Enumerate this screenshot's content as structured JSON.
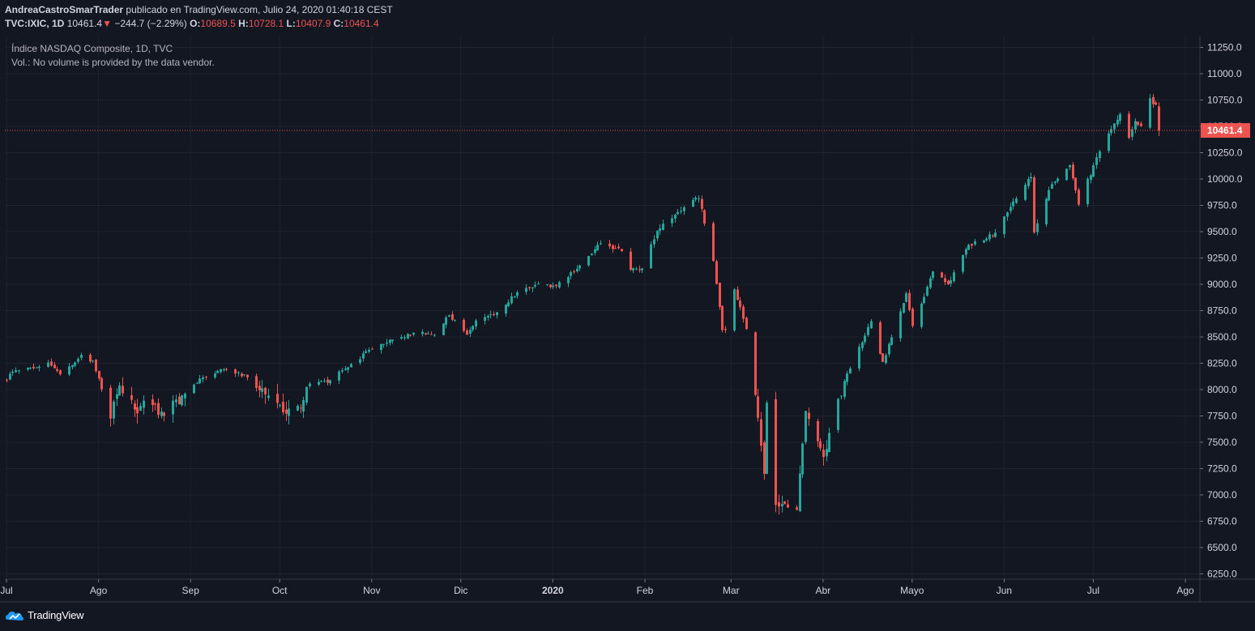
{
  "header": {
    "author": "AndreaCastroSmarTrader",
    "published": "publicado en TradingView.com, Julio 24, 2020 01:40:18 CEST",
    "symbol": "TVC:IXIC, 1D",
    "last": "10461.4",
    "change_arrow": "▼",
    "change": "−244.7 (−2.29%)",
    "o_label": "O:",
    "o_value": "10689.5",
    "h_label": "H:",
    "h_value": "10728.1",
    "l_label": "L:",
    "l_value": "10407.9",
    "c_label": "C:",
    "c_value": "10461.4"
  },
  "legend": {
    "title": "Índice NASDAQ Composite, 1D, TVC",
    "volume_note": "Vol.: No volume is provided by the data vendor."
  },
  "footer": {
    "brand": "TradingView"
  },
  "colors": {
    "up": "#26a69a",
    "down": "#ef5350",
    "background": "#131722",
    "grid": "#1e2230",
    "text": "#d1d4dc",
    "price_line": "#ef5350"
  },
  "chart_data": {
    "type": "candlestick",
    "ylim": [
      6250,
      11250
    ],
    "y_ticks": [
      "11250.0",
      "11000.0",
      "10750.0",
      "10500.0",
      "10250.0",
      "10000.0",
      "9750.0",
      "9500.0",
      "9250.0",
      "9000.0",
      "8750.0",
      "8500.0",
      "8250.0",
      "8000.0",
      "7750.0",
      "7500.0",
      "7250.0",
      "7000.0",
      "6750.0",
      "6500.0",
      "6250.0"
    ],
    "x_ticks": [
      "Jul",
      "Ago",
      "Sep",
      "Oct",
      "Nov",
      "Dic",
      "2020",
      "Feb",
      "Mar",
      "Abr",
      "Mayo",
      "Jun",
      "Jul",
      "Ago"
    ],
    "x_tick_dates": [
      "2019-07-01",
      "2019-08-01",
      "2019-09-01",
      "2019-10-01",
      "2019-11-01",
      "2019-12-01",
      "2020-01-01",
      "2020-02-01",
      "2020-03-01",
      "2020-04-01",
      "2020-05-01",
      "2020-06-01",
      "2020-07-01",
      "2020-08-01"
    ],
    "last_price_label": "10461.4",
    "last_price": 10461.4,
    "date_range": [
      "2019-07-01",
      "2020-07-23"
    ],
    "keypoints": [
      {
        "date": "2019-07-01",
        "close": 8091
      },
      {
        "date": "2019-07-03",
        "close": 8170
      },
      {
        "date": "2019-07-10",
        "close": 8202
      },
      {
        "date": "2019-07-15",
        "close": 8258
      },
      {
        "date": "2019-07-19",
        "close": 8146
      },
      {
        "date": "2019-07-26",
        "close": 8330
      },
      {
        "date": "2019-07-30",
        "close": 8273
      },
      {
        "date": "2019-07-31",
        "close": 8175
      },
      {
        "date": "2019-08-02",
        "close": 8004
      },
      {
        "date": "2019-08-05",
        "close": 7726
      },
      {
        "date": "2019-08-08",
        "close": 8039
      },
      {
        "date": "2019-08-14",
        "close": 7774
      },
      {
        "date": "2019-08-16",
        "close": 7895
      },
      {
        "date": "2019-08-23",
        "close": 7751
      },
      {
        "date": "2019-08-30",
        "close": 7962
      },
      {
        "date": "2019-09-05",
        "close": 8116
      },
      {
        "date": "2019-09-12",
        "close": 8194
      },
      {
        "date": "2019-09-20",
        "close": 8117
      },
      {
        "date": "2019-09-24",
        "close": 7993
      },
      {
        "date": "2019-10-02",
        "close": 7785
      },
      {
        "date": "2019-10-08",
        "close": 7823
      },
      {
        "date": "2019-10-11",
        "close": 8057
      },
      {
        "date": "2019-10-18",
        "close": 8089
      },
      {
        "date": "2019-10-25",
        "close": 8243
      },
      {
        "date": "2019-11-01",
        "close": 8386
      },
      {
        "date": "2019-11-08",
        "close": 8475
      },
      {
        "date": "2019-11-15",
        "close": 8540
      },
      {
        "date": "2019-11-22",
        "close": 8519
      },
      {
        "date": "2019-11-27",
        "close": 8705
      },
      {
        "date": "2019-12-03",
        "close": 8521
      },
      {
        "date": "2019-12-06",
        "close": 8656
      },
      {
        "date": "2019-12-13",
        "close": 8734
      },
      {
        "date": "2019-12-20",
        "close": 8924
      },
      {
        "date": "2019-12-27",
        "close": 9006
      },
      {
        "date": "2019-12-31",
        "close": 8973
      },
      {
        "date": "2020-01-03",
        "close": 9020
      },
      {
        "date": "2020-01-10",
        "close": 9179
      },
      {
        "date": "2020-01-17",
        "close": 9389
      },
      {
        "date": "2020-01-24",
        "close": 9315
      },
      {
        "date": "2020-01-27",
        "close": 9139
      },
      {
        "date": "2020-01-31",
        "close": 9151
      },
      {
        "date": "2020-02-05",
        "close": 9508
      },
      {
        "date": "2020-02-10",
        "close": 9628
      },
      {
        "date": "2020-02-14",
        "close": 9731
      },
      {
        "date": "2020-02-19",
        "close": 9817
      },
      {
        "date": "2020-02-21",
        "close": 9577
      },
      {
        "date": "2020-02-24",
        "close": 9221
      },
      {
        "date": "2020-02-27",
        "close": 8566
      },
      {
        "date": "2020-02-28",
        "close": 8567
      },
      {
        "date": "2020-03-02",
        "close": 8952
      },
      {
        "date": "2020-03-06",
        "close": 8576
      },
      {
        "date": "2020-03-09",
        "close": 7950
      },
      {
        "date": "2020-03-12",
        "close": 7201
      },
      {
        "date": "2020-03-13",
        "close": 7875
      },
      {
        "date": "2020-03-16",
        "close": 6905
      },
      {
        "date": "2020-03-20",
        "close": 6880
      },
      {
        "date": "2020-03-23",
        "close": 6860
      },
      {
        "date": "2020-03-26",
        "close": 7797
      },
      {
        "date": "2020-04-01",
        "close": 7360
      },
      {
        "date": "2020-04-06",
        "close": 7913
      },
      {
        "date": "2020-04-09",
        "close": 8154
      },
      {
        "date": "2020-04-17",
        "close": 8650
      },
      {
        "date": "2020-04-21",
        "close": 8263
      },
      {
        "date": "2020-04-29",
        "close": 8914
      },
      {
        "date": "2020-05-01",
        "close": 8605
      },
      {
        "date": "2020-05-08",
        "close": 9121
      },
      {
        "date": "2020-05-13",
        "close": 9000
      },
      {
        "date": "2020-05-20",
        "close": 9375
      },
      {
        "date": "2020-05-29",
        "close": 9490
      },
      {
        "date": "2020-06-05",
        "close": 9814
      },
      {
        "date": "2020-06-10",
        "close": 10020
      },
      {
        "date": "2020-06-11",
        "close": 9493
      },
      {
        "date": "2020-06-16",
        "close": 9895
      },
      {
        "date": "2020-06-23",
        "close": 10131
      },
      {
        "date": "2020-06-26",
        "close": 9757
      },
      {
        "date": "2020-07-02",
        "close": 10207
      },
      {
        "date": "2020-07-06",
        "close": 10433
      },
      {
        "date": "2020-07-10",
        "close": 10617
      },
      {
        "date": "2020-07-13",
        "close": 10391
      },
      {
        "date": "2020-07-15",
        "close": 10550
      },
      {
        "date": "2020-07-17",
        "close": 10503
      },
      {
        "date": "2020-07-20",
        "close": 10767
      },
      {
        "date": "2020-07-22",
        "close": 10706
      },
      {
        "date": "2020-07-23",
        "open": 10689.5,
        "high": 10728.1,
        "low": 10407.9,
        "close": 10461.4
      }
    ]
  }
}
